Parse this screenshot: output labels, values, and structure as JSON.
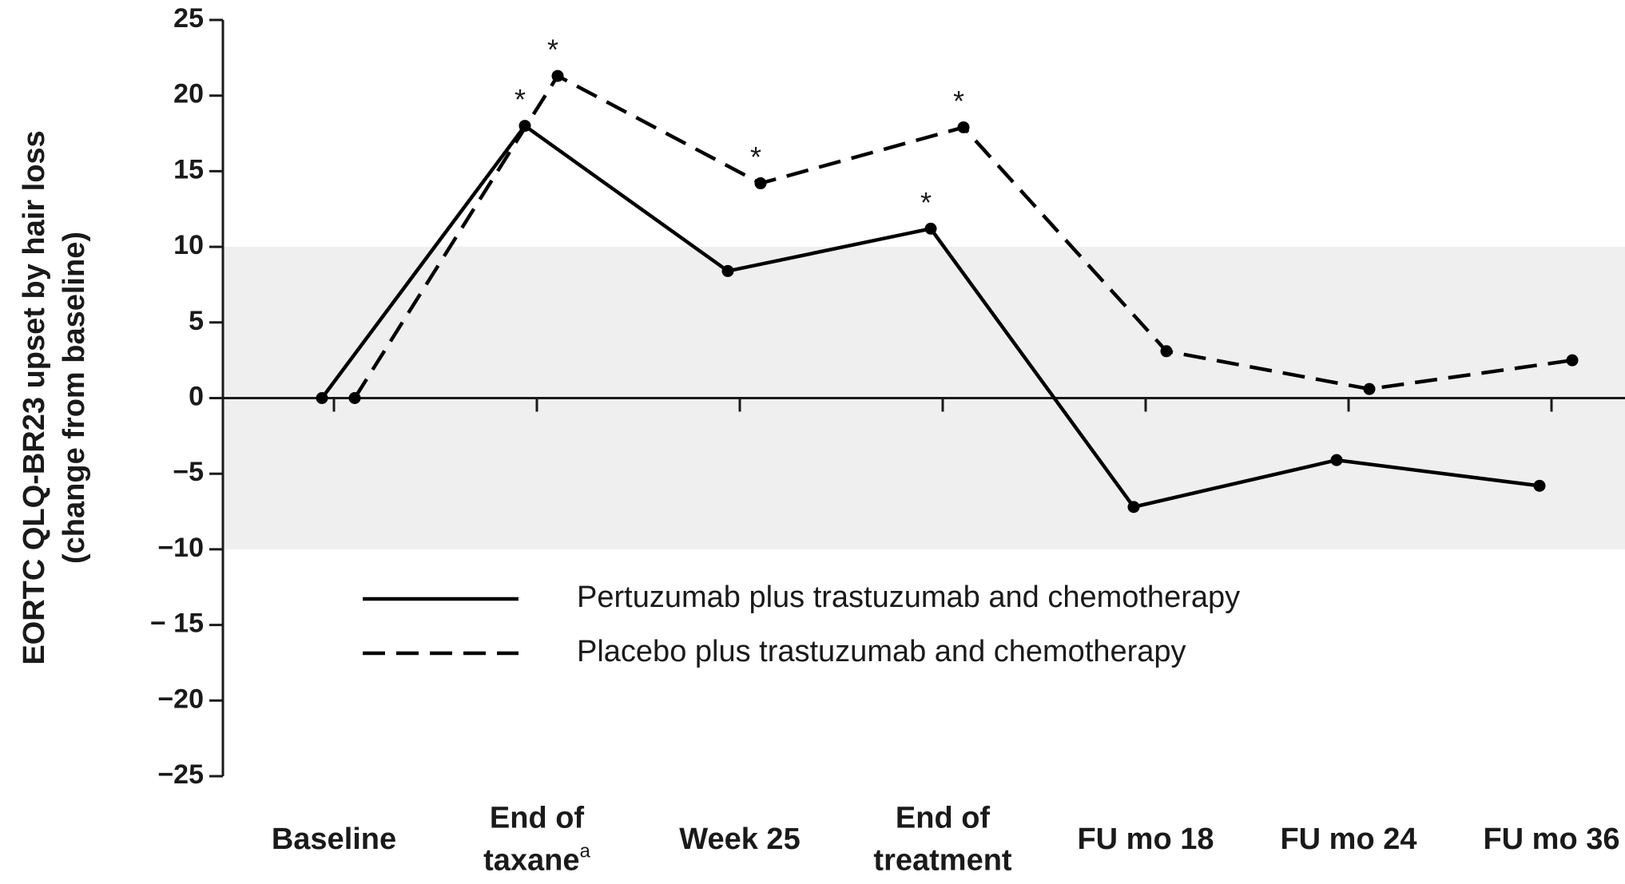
{
  "chart_data": {
    "type": "line",
    "ylabel": "EORTC QLQ-BR23 upset by hair loss\n(change from baseline)",
    "categories": [
      "Baseline",
      "End of\ntaxane",
      "Week 25",
      "End of\ntreatment",
      "FU mo 18",
      "FU mo 24",
      "FU mo 36"
    ],
    "category_notes": [
      null,
      "a",
      null,
      null,
      null,
      null,
      null
    ],
    "series": [
      {
        "name": "Pertuzumab plus trastuzumab and chemotherapy",
        "color": "#000000",
        "dash": "solid",
        "values": [
          0,
          18,
          8.4,
          11.2,
          -7.2,
          -4.1,
          -5.8
        ],
        "significance": [
          null,
          "*",
          null,
          "*",
          null,
          null,
          null
        ]
      },
      {
        "name": "Placebo plus trastuzumab and chemotherapy",
        "color": "#000000",
        "dash": "dashed",
        "values": [
          0,
          21.3,
          14.2,
          17.9,
          3.1,
          0.6,
          2.5
        ],
        "significance": [
          null,
          "*",
          "*",
          "*",
          null,
          null,
          null
        ]
      }
    ],
    "reference_band": [
      -10,
      10
    ],
    "band_color": "#efefef",
    "ylim": [
      -25,
      25
    ],
    "yticks": [
      {
        "value": -25,
        "label": "−25"
      },
      {
        "value": -20,
        "label": "−20"
      },
      {
        "value": -15,
        "label": "− 15"
      },
      {
        "value": -10,
        "label": "−10"
      },
      {
        "value": -5,
        "label": "−5"
      },
      0,
      5,
      10,
      15,
      20,
      25
    ]
  }
}
